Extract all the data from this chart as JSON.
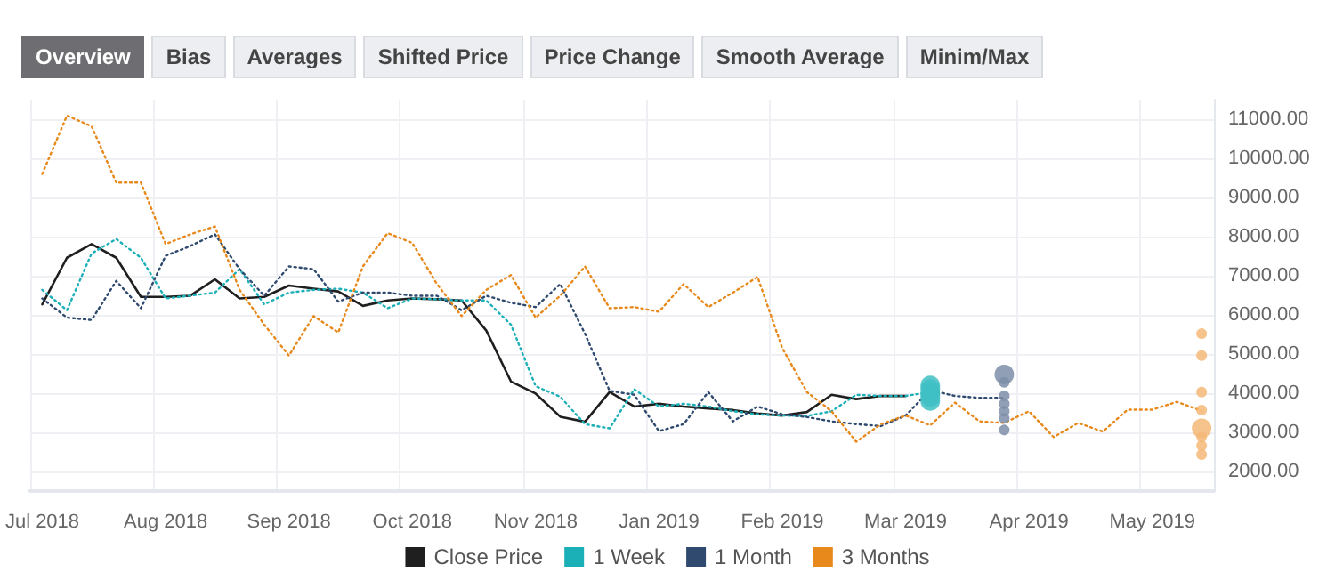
{
  "chart_data": {
    "type": "line",
    "annotations": [
      "Overview",
      "Bias",
      "Averages",
      "Shifted Price",
      "Price Change",
      "Smooth Average",
      "Minim/Max"
    ],
    "categories": [
      "Jul 2018",
      null,
      null,
      null,
      null,
      "Aug 2018",
      null,
      null,
      null,
      null,
      "Sep 2018",
      null,
      null,
      null,
      null,
      "Oct 2018",
      null,
      null,
      null,
      null,
      "Nov 2018",
      null,
      null,
      null,
      null,
      "Jan 2019",
      null,
      null,
      null,
      null,
      "Feb 2019",
      null,
      null,
      null,
      null,
      "Mar 2019",
      null,
      null,
      null,
      null,
      "Apr 2019",
      null,
      null,
      null,
      null,
      "May 2019",
      null,
      null
    ],
    "ylim": [
      1500,
      11500
    ],
    "yticks": [
      {
        "value": 2000,
        "label": "2000.00"
      },
      {
        "value": 3000,
        "label": "3000.00"
      },
      {
        "value": 4000,
        "label": "4000.00"
      },
      {
        "value": 5000,
        "label": "5000.00"
      },
      {
        "value": 6000,
        "label": "6000.00"
      },
      {
        "value": 7000,
        "label": "7000.00"
      },
      {
        "value": 8000,
        "label": "8000.00"
      },
      {
        "value": 9000,
        "label": "9000.00"
      },
      {
        "value": 10000,
        "label": "10000.00"
      },
      {
        "value": 11000,
        "label": "11000.00"
      }
    ],
    "grid": true,
    "legend": "bottom",
    "series": [
      {
        "name": "Close Price",
        "color": "#1f1f1f",
        "line_style": "solid",
        "marker": "none",
        "values": [
          6270,
          7460,
          7810,
          7460,
          6460,
          6460,
          6490,
          6910,
          6420,
          6460,
          6750,
          6670,
          6600,
          6230,
          6370,
          6420,
          6400,
          6370,
          5600,
          4300,
          3990,
          3400,
          3270,
          4030,
          3660,
          3730,
          3660,
          3610,
          3570,
          3480,
          3430,
          3520,
          3960,
          3850,
          3930,
          3930,
          null,
          null,
          null,
          null,
          null,
          null,
          null,
          null,
          null,
          null,
          null,
          null
        ]
      },
      {
        "name": "1 Week",
        "color": "#1bb0b8",
        "line_style": "dotted",
        "marker": "none",
        "values": [
          6640,
          6120,
          7570,
          7940,
          7460,
          6420,
          6490,
          6570,
          7170,
          6270,
          6570,
          6640,
          6670,
          6570,
          6170,
          6420,
          6400,
          6370,
          6370,
          5750,
          4180,
          3910,
          3210,
          3100,
          4100,
          3660,
          3730,
          3660,
          3540,
          3460,
          3430,
          3420,
          3540,
          3960,
          3930,
          3930,
          4030,
          null,
          null,
          null,
          null,
          null,
          null,
          null,
          null,
          null,
          null,
          null
        ]
      },
      {
        "name": "1 Month",
        "color": "#2f4a6e",
        "line_style": "dotted",
        "marker": "none",
        "values": [
          6420,
          5930,
          5870,
          6870,
          6170,
          7510,
          7760,
          8060,
          7170,
          6490,
          7240,
          7170,
          6340,
          6570,
          6570,
          6490,
          6490,
          6120,
          6490,
          6310,
          6200,
          6790,
          5520,
          4060,
          3960,
          3030,
          3210,
          4030,
          3280,
          3660,
          3460,
          3390,
          3280,
          3210,
          3160,
          3430,
          4080,
          3930,
          3880,
          3880,
          null,
          null,
          null,
          null,
          null,
          null,
          null,
          null
        ]
      },
      {
        "name": "3 Months",
        "color": "#e8891c",
        "line_style": "dotted",
        "marker": "none",
        "values": [
          9600,
          11090,
          10820,
          9380,
          9380,
          7810,
          8060,
          8260,
          6640,
          5750,
          4960,
          5970,
          5550,
          7240,
          8090,
          7840,
          6790,
          5970,
          6640,
          7020,
          5930,
          6490,
          7240,
          6170,
          6200,
          6080,
          6790,
          6200,
          6570,
          6970,
          5150,
          4030,
          3540,
          2760,
          3210,
          3430,
          3180,
          3760,
          3280,
          3240,
          3540,
          2880,
          3240,
          3020,
          3580,
          3580,
          3780,
          3550
        ]
      },
      {
        "type": "bubble",
        "values": [
          null,
          null,
          null,
          null,
          null,
          null,
          null,
          null,
          null,
          null,
          null,
          null,
          null,
          null,
          null,
          null,
          null,
          null,
          null,
          null,
          null,
          null,
          null,
          null,
          null,
          null,
          null,
          null,
          null,
          null,
          null,
          null,
          null,
          null,
          null,
          null,
          4200,
          null,
          null,
          4480,
          null,
          null,
          null,
          null,
          null,
          null,
          null,
          3100
        ],
        "sizes": [
          null,
          null,
          null,
          null,
          null,
          null,
          null,
          null,
          null,
          null,
          null,
          null,
          null,
          null,
          null,
          null,
          null,
          null,
          null,
          null,
          null,
          null,
          null,
          null,
          null,
          null,
          null,
          null,
          null,
          null,
          null,
          null,
          null,
          null,
          null,
          null,
          1,
          null,
          null,
          1,
          null,
          null,
          null,
          null,
          null,
          null,
          null,
          1
        ],
        "colors": [
          null,
          null,
          null,
          null,
          null,
          null,
          null,
          null,
          null,
          null,
          null,
          null,
          null,
          null,
          null,
          null,
          null,
          null,
          null,
          null,
          null,
          null,
          null,
          null,
          null,
          null,
          null,
          null,
          null,
          null,
          null,
          null,
          null,
          null,
          null,
          null,
          "#3fc0c4",
          null,
          null,
          "#7d8ea8",
          null,
          null,
          null,
          null,
          null,
          null,
          null,
          "#f4b878"
        ]
      },
      {
        "type": "bubble",
        "values": [
          null,
          null,
          null,
          null,
          null,
          null,
          null,
          null,
          null,
          null,
          null,
          null,
          null,
          null,
          null,
          null,
          null,
          null,
          null,
          null,
          null,
          null,
          null,
          null,
          null,
          null,
          null,
          null,
          null,
          null,
          null,
          null,
          null,
          null,
          null,
          null,
          4100,
          null,
          null,
          4280,
          null,
          null,
          null,
          null,
          null,
          null,
          null,
          5520
        ],
        "sizes": [
          null,
          null,
          null,
          null,
          null,
          null,
          null,
          null,
          null,
          null,
          null,
          null,
          null,
          null,
          null,
          null,
          null,
          null,
          null,
          null,
          null,
          null,
          null,
          null,
          null,
          null,
          null,
          null,
          null,
          null,
          null,
          null,
          null,
          null,
          null,
          null,
          1,
          null,
          null,
          0.3,
          null,
          null,
          null,
          null,
          null,
          null,
          null,
          0.3
        ],
        "colors": [
          null,
          null,
          null,
          null,
          null,
          null,
          null,
          null,
          null,
          null,
          null,
          null,
          null,
          null,
          null,
          null,
          null,
          null,
          null,
          null,
          null,
          null,
          null,
          null,
          null,
          null,
          null,
          null,
          null,
          null,
          null,
          null,
          null,
          null,
          null,
          null,
          "#3fc0c4",
          null,
          null,
          "#7d8ea8",
          null,
          null,
          null,
          null,
          null,
          null,
          null,
          "#f4b878"
        ]
      },
      {
        "type": "bubble",
        "values": [
          null,
          null,
          null,
          null,
          null,
          null,
          null,
          null,
          null,
          null,
          null,
          null,
          null,
          null,
          null,
          null,
          null,
          null,
          null,
          null,
          null,
          null,
          null,
          null,
          null,
          null,
          null,
          null,
          null,
          null,
          null,
          null,
          null,
          null,
          null,
          null,
          4000,
          null,
          null,
          3930,
          null,
          null,
          null,
          null,
          null,
          null,
          null,
          4960
        ],
        "sizes": [
          null,
          null,
          null,
          null,
          null,
          null,
          null,
          null,
          null,
          null,
          null,
          null,
          null,
          null,
          null,
          null,
          null,
          null,
          null,
          null,
          null,
          null,
          null,
          null,
          null,
          null,
          null,
          null,
          null,
          null,
          null,
          null,
          null,
          null,
          null,
          null,
          1,
          null,
          null,
          0.3,
          null,
          null,
          null,
          null,
          null,
          null,
          null,
          0.3
        ],
        "colors": [
          null,
          null,
          null,
          null,
          null,
          null,
          null,
          null,
          null,
          null,
          null,
          null,
          null,
          null,
          null,
          null,
          null,
          null,
          null,
          null,
          null,
          null,
          null,
          null,
          null,
          null,
          null,
          null,
          null,
          null,
          null,
          null,
          null,
          null,
          null,
          null,
          "#3fc0c4",
          null,
          null,
          "#7d8ea8",
          null,
          null,
          null,
          null,
          null,
          null,
          null,
          "#f4b878"
        ]
      },
      {
        "type": "bubble",
        "values": [
          null,
          null,
          null,
          null,
          null,
          null,
          null,
          null,
          null,
          null,
          null,
          null,
          null,
          null,
          null,
          null,
          null,
          null,
          null,
          null,
          null,
          null,
          null,
          null,
          null,
          null,
          null,
          null,
          null,
          null,
          null,
          null,
          null,
          null,
          null,
          null,
          3900,
          null,
          null,
          3730,
          null,
          null,
          null,
          null,
          null,
          null,
          null,
          4030
        ],
        "sizes": [
          null,
          null,
          null,
          null,
          null,
          null,
          null,
          null,
          null,
          null,
          null,
          null,
          null,
          null,
          null,
          null,
          null,
          null,
          null,
          null,
          null,
          null,
          null,
          null,
          null,
          null,
          null,
          null,
          null,
          null,
          null,
          null,
          null,
          null,
          null,
          null,
          1,
          null,
          null,
          0.3,
          null,
          null,
          null,
          null,
          null,
          null,
          null,
          0.3
        ],
        "colors": [
          null,
          null,
          null,
          null,
          null,
          null,
          null,
          null,
          null,
          null,
          null,
          null,
          null,
          null,
          null,
          null,
          null,
          null,
          null,
          null,
          null,
          null,
          null,
          null,
          null,
          null,
          null,
          null,
          null,
          null,
          null,
          null,
          null,
          null,
          null,
          null,
          "#3fc0c4",
          null,
          null,
          "#7d8ea8",
          null,
          null,
          null,
          null,
          null,
          null,
          null,
          "#f4b878"
        ]
      },
      {
        "type": "bubble",
        "values": [
          null,
          null,
          null,
          null,
          null,
          null,
          null,
          null,
          null,
          null,
          null,
          null,
          null,
          null,
          null,
          null,
          null,
          null,
          null,
          null,
          null,
          null,
          null,
          null,
          null,
          null,
          null,
          null,
          null,
          null,
          null,
          null,
          null,
          null,
          null,
          null,
          3800,
          null,
          null,
          3540,
          null,
          null,
          null,
          null,
          null,
          null,
          null,
          3570
        ],
        "sizes": [
          null,
          null,
          null,
          null,
          null,
          null,
          null,
          null,
          null,
          null,
          null,
          null,
          null,
          null,
          null,
          null,
          null,
          null,
          null,
          null,
          null,
          null,
          null,
          null,
          null,
          null,
          null,
          null,
          null,
          null,
          null,
          null,
          null,
          null,
          null,
          null,
          1,
          null,
          null,
          0.3,
          null,
          null,
          null,
          null,
          null,
          null,
          null,
          0.3
        ],
        "colors": [
          null,
          null,
          null,
          null,
          null,
          null,
          null,
          null,
          null,
          null,
          null,
          null,
          null,
          null,
          null,
          null,
          null,
          null,
          null,
          null,
          null,
          null,
          null,
          null,
          null,
          null,
          null,
          null,
          null,
          null,
          null,
          null,
          null,
          null,
          null,
          null,
          "#3fc0c4",
          null,
          null,
          "#7d8ea8",
          null,
          null,
          null,
          null,
          null,
          null,
          null,
          "#f4b878"
        ]
      },
      {
        "type": "bubble",
        "values": [
          null,
          null,
          null,
          null,
          null,
          null,
          null,
          null,
          null,
          null,
          null,
          null,
          null,
          null,
          null,
          null,
          null,
          null,
          null,
          null,
          null,
          null,
          null,
          null,
          null,
          null,
          null,
          null,
          null,
          null,
          null,
          null,
          null,
          null,
          null,
          null,
          null,
          null,
          null,
          3360,
          null,
          null,
          null,
          null,
          null,
          null,
          null,
          2880
        ],
        "sizes": [
          null,
          null,
          null,
          null,
          null,
          null,
          null,
          null,
          null,
          null,
          null,
          null,
          null,
          null,
          null,
          null,
          null,
          null,
          null,
          null,
          null,
          null,
          null,
          null,
          null,
          null,
          null,
          null,
          null,
          null,
          null,
          null,
          null,
          null,
          null,
          null,
          null,
          null,
          null,
          0.3,
          null,
          null,
          null,
          null,
          null,
          null,
          null,
          0.3
        ],
        "colors": [
          null,
          null,
          null,
          null,
          null,
          null,
          null,
          null,
          null,
          null,
          null,
          null,
          null,
          null,
          null,
          null,
          null,
          null,
          null,
          null,
          null,
          null,
          null,
          null,
          null,
          null,
          null,
          null,
          null,
          null,
          null,
          null,
          null,
          null,
          null,
          null,
          null,
          null,
          null,
          "#7d8ea8",
          null,
          null,
          null,
          null,
          null,
          null,
          null,
          "#f4b878"
        ]
      },
      {
        "type": "bubble",
        "values": [
          null,
          null,
          null,
          null,
          null,
          null,
          null,
          null,
          null,
          null,
          null,
          null,
          null,
          null,
          null,
          null,
          null,
          null,
          null,
          null,
          null,
          null,
          null,
          null,
          null,
          null,
          null,
          null,
          null,
          null,
          null,
          null,
          null,
          null,
          null,
          null,
          null,
          null,
          null,
          3060,
          null,
          null,
          null,
          null,
          null,
          null,
          null,
          2660
        ],
        "sizes": [
          null,
          null,
          null,
          null,
          null,
          null,
          null,
          null,
          null,
          null,
          null,
          null,
          null,
          null,
          null,
          null,
          null,
          null,
          null,
          null,
          null,
          null,
          null,
          null,
          null,
          null,
          null,
          null,
          null,
          null,
          null,
          null,
          null,
          null,
          null,
          null,
          null,
          null,
          null,
          0.3,
          null,
          null,
          null,
          null,
          null,
          null,
          null,
          0.3
        ],
        "colors": [
          null,
          null,
          null,
          null,
          null,
          null,
          null,
          null,
          null,
          null,
          null,
          null,
          null,
          null,
          null,
          null,
          null,
          null,
          null,
          null,
          null,
          null,
          null,
          null,
          null,
          null,
          null,
          null,
          null,
          null,
          null,
          null,
          null,
          null,
          null,
          null,
          null,
          null,
          null,
          "#7d8ea8",
          null,
          null,
          null,
          null,
          null,
          null,
          null,
          "#f4b878"
        ]
      },
      {
        "type": "bubble",
        "values": [
          null,
          null,
          null,
          null,
          null,
          null,
          null,
          null,
          null,
          null,
          null,
          null,
          null,
          null,
          null,
          null,
          null,
          null,
          null,
          null,
          null,
          null,
          null,
          null,
          null,
          null,
          null,
          null,
          null,
          null,
          null,
          null,
          null,
          null,
          null,
          null,
          null,
          null,
          null,
          null,
          null,
          null,
          null,
          null,
          null,
          null,
          null,
          2430
        ],
        "sizes": [
          null,
          null,
          null,
          null,
          null,
          null,
          null,
          null,
          null,
          null,
          null,
          null,
          null,
          null,
          null,
          null,
          null,
          null,
          null,
          null,
          null,
          null,
          null,
          null,
          null,
          null,
          null,
          null,
          null,
          null,
          null,
          null,
          null,
          null,
          null,
          null,
          null,
          null,
          null,
          null,
          null,
          null,
          null,
          null,
          null,
          null,
          null,
          0.3
        ],
        "colors": [
          null,
          null,
          null,
          null,
          null,
          null,
          null,
          null,
          null,
          null,
          null,
          null,
          null,
          null,
          null,
          null,
          null,
          null,
          null,
          null,
          null,
          null,
          null,
          null,
          null,
          null,
          null,
          null,
          null,
          null,
          null,
          null,
          null,
          null,
          null,
          null,
          null,
          null,
          null,
          null,
          null,
          null,
          null,
          null,
          null,
          null,
          null,
          "#f4b878"
        ]
      }
    ]
  }
}
